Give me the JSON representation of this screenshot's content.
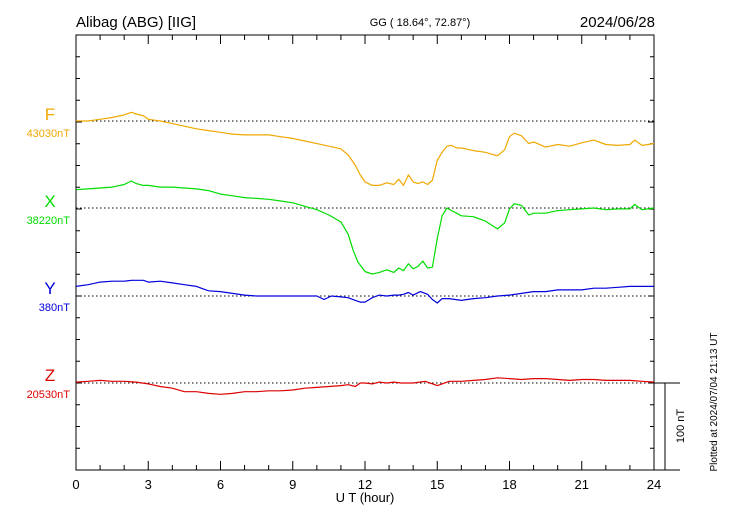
{
  "header": {
    "station": "Alibag (ABG)  [IIG]",
    "coords": "GG ( 18.64°,  72.87°)",
    "date": "2024/06/28"
  },
  "side_text": "Plotted at 2024/07/04 21:13 UT",
  "scale_label": "100 nT",
  "chart_data": {
    "type": "line",
    "xlabel": "U T (hour)",
    "xlim": [
      0,
      24
    ],
    "x_ticks": [
      "0",
      "3",
      "6",
      "9",
      "12",
      "15",
      "18",
      "21",
      "24"
    ],
    "scale_bar_nT": 100,
    "series": [
      {
        "name": "F",
        "baseline_label": "43030nT",
        "color": "#f0a800",
        "baseline_nT": 43030,
        "x": [
          0,
          0.5,
          1,
          1.5,
          2,
          2.3,
          2.5,
          2.8,
          3,
          3.5,
          4,
          4.5,
          5,
          5.5,
          6,
          6.5,
          7,
          7.5,
          8,
          8.5,
          9,
          9.5,
          10,
          10.5,
          11,
          11.3,
          11.6,
          11.8,
          12,
          12.3,
          12.6,
          12.9,
          13.2,
          13.4,
          13.6,
          13.8,
          14,
          14.2,
          14.4,
          14.6,
          14.8,
          15,
          15.2,
          15.4,
          15.6,
          15.8,
          16,
          16.5,
          17,
          17.5,
          17.8,
          18,
          18.2,
          18.5,
          18.8,
          19,
          19.5,
          20,
          20.5,
          21,
          21.5,
          22,
          22.5,
          23,
          23.2,
          23.5,
          24
        ],
        "y": [
          43030,
          43030,
          43032,
          43034,
          43037,
          43040,
          43038,
          43036,
          43032,
          43030,
          43027,
          43024,
          43021,
          43019,
          43017,
          43015,
          43014,
          43014,
          43014,
          43012,
          43010,
          43007,
          43004,
          43001,
          42998,
          42991,
          42979,
          42968,
          42960,
          42956,
          42956,
          42959,
          42957,
          42963,
          42956,
          42968,
          42960,
          42958,
          42960,
          42957,
          42962,
          42985,
          42994,
          43001,
          43002,
          42999,
          42999,
          42996,
          42994,
          42990,
          42997,
          43012,
          43016,
          43013,
          43004,
          43006,
          43000,
          43003,
          43001,
          43005,
          43008,
          43003,
          43002,
          43003,
          43008,
          43002,
          43004
        ]
      },
      {
        "name": "X",
        "baseline_label": "38220nT",
        "color": "#00dd00",
        "baseline_nT": 38220,
        "x": [
          0,
          0.5,
          1,
          1.5,
          2,
          2.3,
          2.5,
          2.8,
          3,
          3.5,
          4,
          4.5,
          5,
          5.5,
          6,
          6.5,
          7,
          7.5,
          8,
          8.5,
          9,
          9.5,
          10,
          10.5,
          11,
          11.3,
          11.5,
          11.7,
          12,
          12.3,
          12.6,
          12.9,
          13.2,
          13.4,
          13.6,
          13.8,
          14,
          14.2,
          14.4,
          14.6,
          14.8,
          15,
          15.2,
          15.4,
          15.6,
          15.8,
          16,
          16.5,
          17,
          17.5,
          17.8,
          18,
          18.2,
          18.5,
          18.8,
          19,
          19.5,
          20,
          20.5,
          21,
          21.5,
          22,
          22.5,
          23,
          23.2,
          23.5,
          24
        ],
        "y": [
          38241,
          38242,
          38243,
          38244,
          38247,
          38251,
          38248,
          38246,
          38246,
          38244,
          38244,
          38243,
          38242,
          38240,
          38236,
          38234,
          38232,
          38231,
          38230,
          38228,
          38226,
          38222,
          38218,
          38212,
          38204,
          38190,
          38172,
          38158,
          38147,
          38144,
          38146,
          38149,
          38146,
          38151,
          38148,
          38156,
          38150,
          38153,
          38159,
          38151,
          38152,
          38185,
          38211,
          38220,
          38217,
          38214,
          38211,
          38210,
          38205,
          38196,
          38203,
          38219,
          38225,
          38223,
          38212,
          38214,
          38214,
          38217,
          38218,
          38219,
          38220,
          38218,
          38219,
          38219,
          38224,
          38218,
          38220
        ]
      },
      {
        "name": "Y",
        "baseline_label": "380nT",
        "color": "#0000dd",
        "baseline_nT": 380,
        "x": [
          0,
          0.5,
          1,
          1.5,
          2,
          2.3,
          2.5,
          2.8,
          3,
          3.5,
          4,
          4.5,
          5,
          5.5,
          6,
          6.5,
          7,
          7.5,
          8,
          8.5,
          9,
          9.5,
          10,
          10.3,
          10.6,
          11,
          11.3,
          11.6,
          11.8,
          12,
          12.3,
          12.6,
          12.9,
          13.2,
          13.4,
          13.6,
          13.8,
          14,
          14.3,
          14.6,
          14.8,
          15,
          15.2,
          15.5,
          16,
          16.5,
          17,
          17.5,
          18,
          18.5,
          19,
          19.5,
          20,
          20.5,
          21,
          21.5,
          22,
          22.5,
          23,
          23.3,
          23.5,
          24
        ],
        "y": [
          391,
          393,
          396,
          397,
          397,
          398,
          398,
          398,
          396,
          397,
          395,
          393,
          391,
          386,
          385,
          383,
          381,
          380,
          380,
          380,
          380,
          380,
          380,
          376,
          380,
          379,
          378,
          375,
          373,
          373,
          378,
          381,
          380,
          381,
          381,
          382,
          384,
          381,
          385,
          382,
          376,
          372,
          377,
          377,
          375,
          377,
          378,
          380,
          381,
          383,
          385,
          385,
          387,
          387,
          387,
          389,
          389,
          390,
          391,
          391,
          391,
          391
        ]
      },
      {
        "name": "Z",
        "baseline_label": "20530nT",
        "color": "#dd0000",
        "baseline_nT": 20530,
        "x": [
          0,
          0.5,
          1,
          1.5,
          2,
          2.5,
          3,
          3.5,
          4,
          4.5,
          5,
          5.5,
          6,
          6.5,
          7,
          7.5,
          8,
          8.5,
          9,
          9.5,
          10,
          10.5,
          11,
          11.3,
          11.6,
          11.8,
          12,
          12.3,
          12.6,
          12.9,
          13.2,
          13.5,
          14,
          14.5,
          15,
          15.2,
          15.5,
          16,
          16.5,
          17,
          17.5,
          18,
          18.5,
          19,
          19.5,
          20,
          20.5,
          21,
          21.5,
          22,
          22.5,
          23,
          23.5,
          24
        ],
        "y": [
          20531,
          20532,
          20533,
          20532,
          20532,
          20531,
          20529,
          20526,
          20524,
          20520,
          20520,
          20518,
          20517,
          20518,
          20520,
          20520,
          20521,
          20521,
          20522,
          20524,
          20525,
          20526,
          20527,
          20528,
          20526,
          20530,
          20530,
          20529,
          20531,
          20530,
          20531,
          20530,
          20530,
          20532,
          20527,
          20529,
          20532,
          20532,
          20533,
          20534,
          20536,
          20535,
          20534,
          20535,
          20535,
          20534,
          20533,
          20534,
          20534,
          20533,
          20533,
          20533,
          20532,
          20531
        ]
      }
    ]
  }
}
